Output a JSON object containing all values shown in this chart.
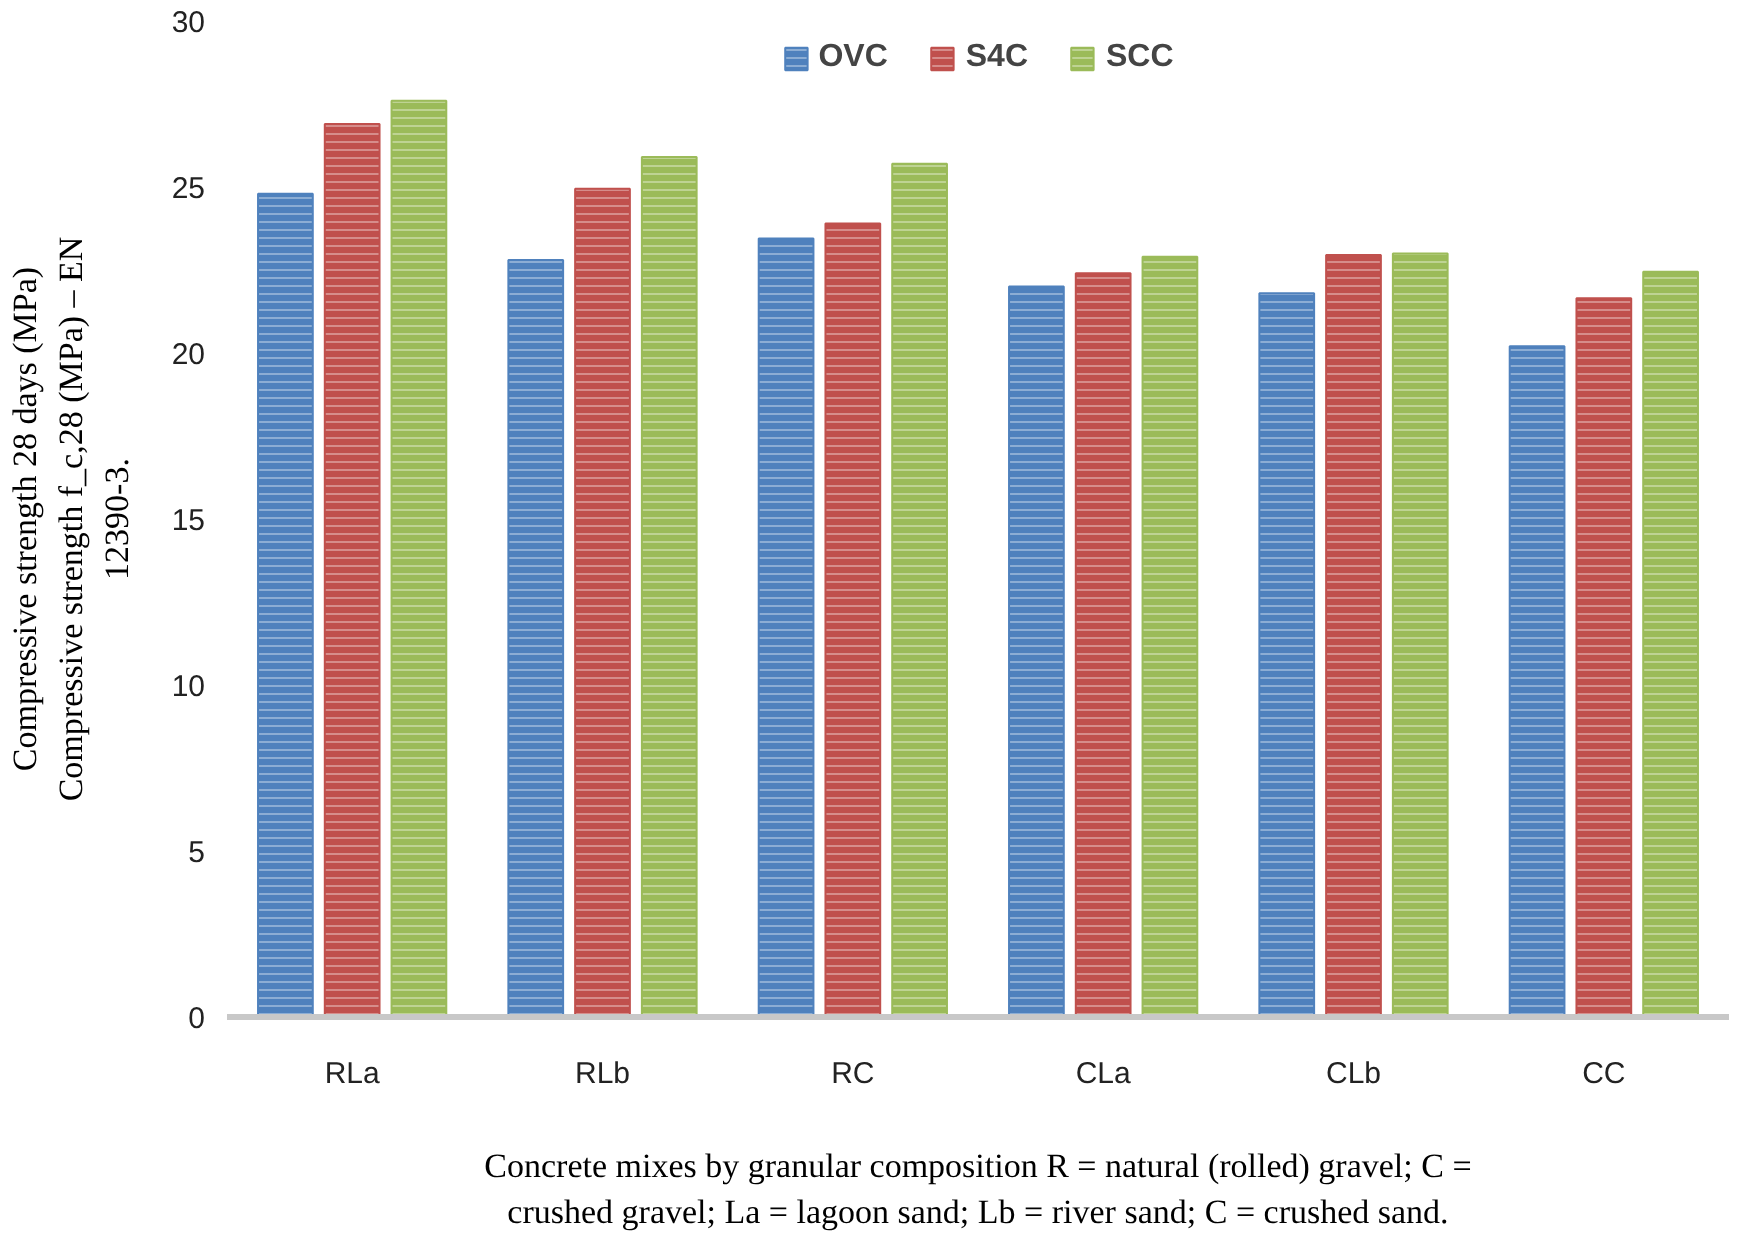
{
  "chart_data": {
    "type": "bar",
    "xlabel": "Concrete mixes by granular composition R = natural (rolled) gravel; C = crushed gravel; La = lagoon sand; Lb = river sand; C = crushed sand.",
    "ylabel": "Compressive strength 28 days (MPa) Compressive strength f_c,28 (MPa) – EN 12390-3.",
    "categories": [
      "RLa",
      "RLb",
      "RC",
      "CLa",
      "CLb",
      "CC"
    ],
    "series": [
      {
        "name": "OVC",
        "color": "#4f81bd",
        "values": [
          24.8,
          22.8,
          23.45,
          22.0,
          21.8,
          20.2
        ]
      },
      {
        "name": "S4C",
        "color": "#c0504d",
        "values": [
          26.9,
          24.95,
          23.9,
          22.4,
          22.95,
          21.65
        ]
      },
      {
        "name": "SCC",
        "color": "#9bbb59",
        "values": [
          27.6,
          25.9,
          25.7,
          22.9,
          23.0,
          22.45
        ]
      }
    ],
    "ylim": [
      0,
      30
    ],
    "yticks": [
      0,
      5,
      10,
      15,
      20,
      25,
      30
    ],
    "grid": false,
    "legend": "top"
  }
}
